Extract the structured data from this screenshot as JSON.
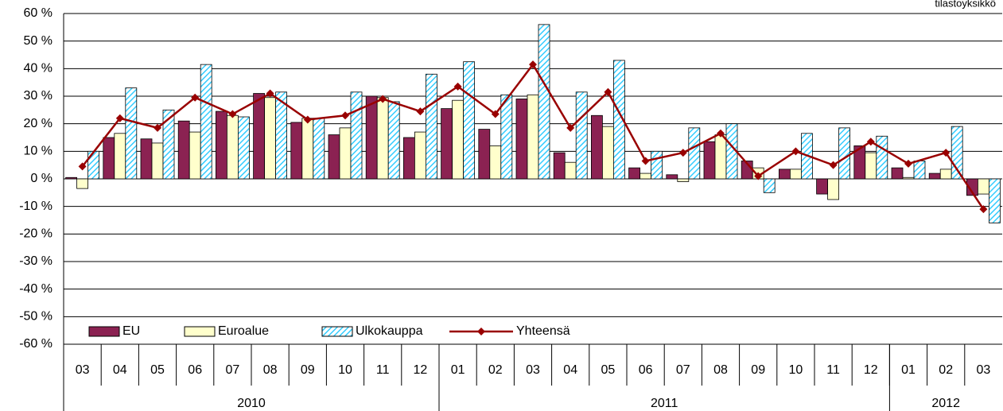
{
  "chart_data": {
    "type": "bar",
    "unit_note": "tilastoyksikkö",
    "categories": [
      "03",
      "04",
      "05",
      "06",
      "07",
      "08",
      "09",
      "10",
      "11",
      "12",
      "01",
      "02",
      "03",
      "04",
      "05",
      "06",
      "07",
      "08",
      "09",
      "10",
      "11",
      "12",
      "01",
      "02",
      "03"
    ],
    "groups": [
      {
        "label": "2010",
        "size": 10
      },
      {
        "label": "2011",
        "size": 12
      },
      {
        "label": "2012",
        "size": 3
      }
    ],
    "series": [
      {
        "name": "EU",
        "type": "bar",
        "color": "#8b2252",
        "values": [
          0.5,
          15,
          14.5,
          21,
          24.5,
          31,
          20.5,
          16,
          30,
          15,
          25.5,
          18,
          29,
          9.5,
          23,
          4,
          1.5,
          13.5,
          6.5,
          3.5,
          -5.5,
          12,
          4,
          2,
          -6
        ]
      },
      {
        "name": "Euroalue",
        "type": "bar",
        "color": "#ffffcc",
        "values": [
          -3.5,
          16.5,
          13,
          17,
          23,
          29.5,
          22,
          18.5,
          29.5,
          17,
          28.5,
          12,
          30.5,
          6,
          19,
          2,
          -1,
          16,
          4,
          3.5,
          -7.5,
          9.5,
          0.5,
          3.5,
          -5.5
        ]
      },
      {
        "name": "Ulkokauppa",
        "type": "bar",
        "color": "#33ccff",
        "hatched": true,
        "values": [
          10,
          33,
          25,
          41.5,
          22.5,
          31.5,
          22,
          31.5,
          28,
          38,
          42.5,
          30.5,
          56,
          31.5,
          43,
          10,
          18.5,
          20,
          -5,
          16.5,
          18.5,
          15.5,
          6.5,
          19,
          -16
        ]
      },
      {
        "name": "Yhteensä",
        "type": "line",
        "color": "#990000",
        "values": [
          4.5,
          22,
          18.5,
          29.5,
          23.5,
          31,
          21.5,
          23,
          29,
          24.5,
          33.5,
          23.5,
          41.5,
          18.5,
          31.5,
          6.5,
          9.5,
          16.5,
          1,
          10,
          5,
          13.5,
          5.5,
          9.5,
          -11
        ]
      }
    ],
    "ylim": [
      -60,
      60
    ],
    "yticks": [
      {
        "value": -60,
        "label": "-60 %"
      },
      {
        "value": -50,
        "label": "-50 %"
      },
      {
        "value": -40,
        "label": "-40 %"
      },
      {
        "value": -30,
        "label": "-30 %"
      },
      {
        "value": -20,
        "label": "-20 %"
      },
      {
        "value": -10,
        "label": "-10 %"
      },
      {
        "value": 0,
        "label": "0 %"
      },
      {
        "value": 10,
        "label": "10 %"
      },
      {
        "value": 20,
        "label": "20 %"
      },
      {
        "value": 30,
        "label": "30 %"
      },
      {
        "value": 40,
        "label": "40 %"
      },
      {
        "value": 50,
        "label": "50 %"
      },
      {
        "value": 60,
        "label": "60 %"
      }
    ],
    "grid": true,
    "legend": "bottom-left"
  }
}
